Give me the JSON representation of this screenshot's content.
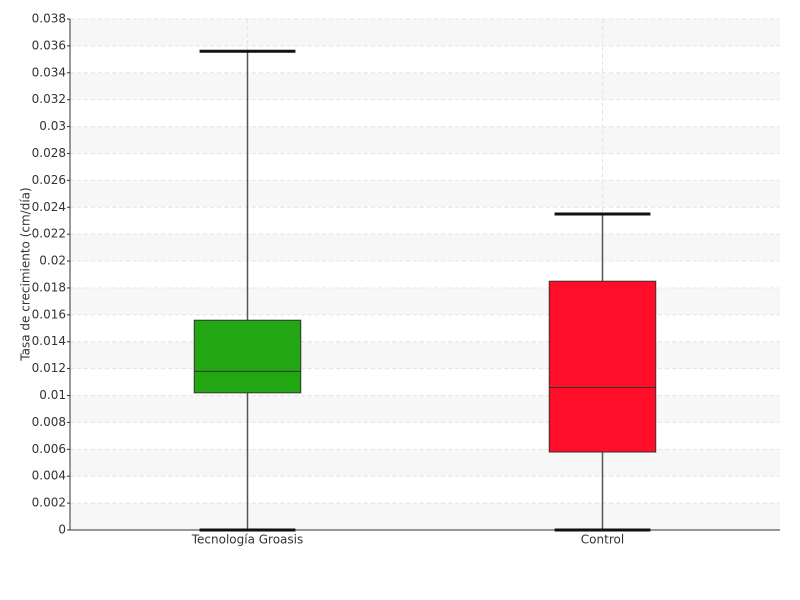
{
  "chart_data": {
    "type": "box",
    "y_label": "Tasa de crecimiento (cm/día)",
    "categories": [
      "Tecnología Groasis",
      "Control"
    ],
    "boxes": [
      {
        "min": 0,
        "q1": 0.0102,
        "median": 0.0118,
        "q3": 0.0156,
        "max": 0.0356,
        "color": "#22a612"
      },
      {
        "min": 0,
        "q1": 0.0058,
        "median": 0.0106,
        "q3": 0.0185,
        "max": 0.0235,
        "color": "#ff0d29"
      }
    ],
    "ylim": [
      0,
      0.038
    ],
    "yticks": [
      0,
      0.002,
      0.004,
      0.006,
      0.008,
      0.01,
      0.012,
      0.014,
      0.016,
      0.018,
      0.02,
      0.022,
      0.024,
      0.026,
      0.028,
      0.03,
      0.032,
      0.034,
      0.036,
      0.038
    ],
    "grid": true
  }
}
